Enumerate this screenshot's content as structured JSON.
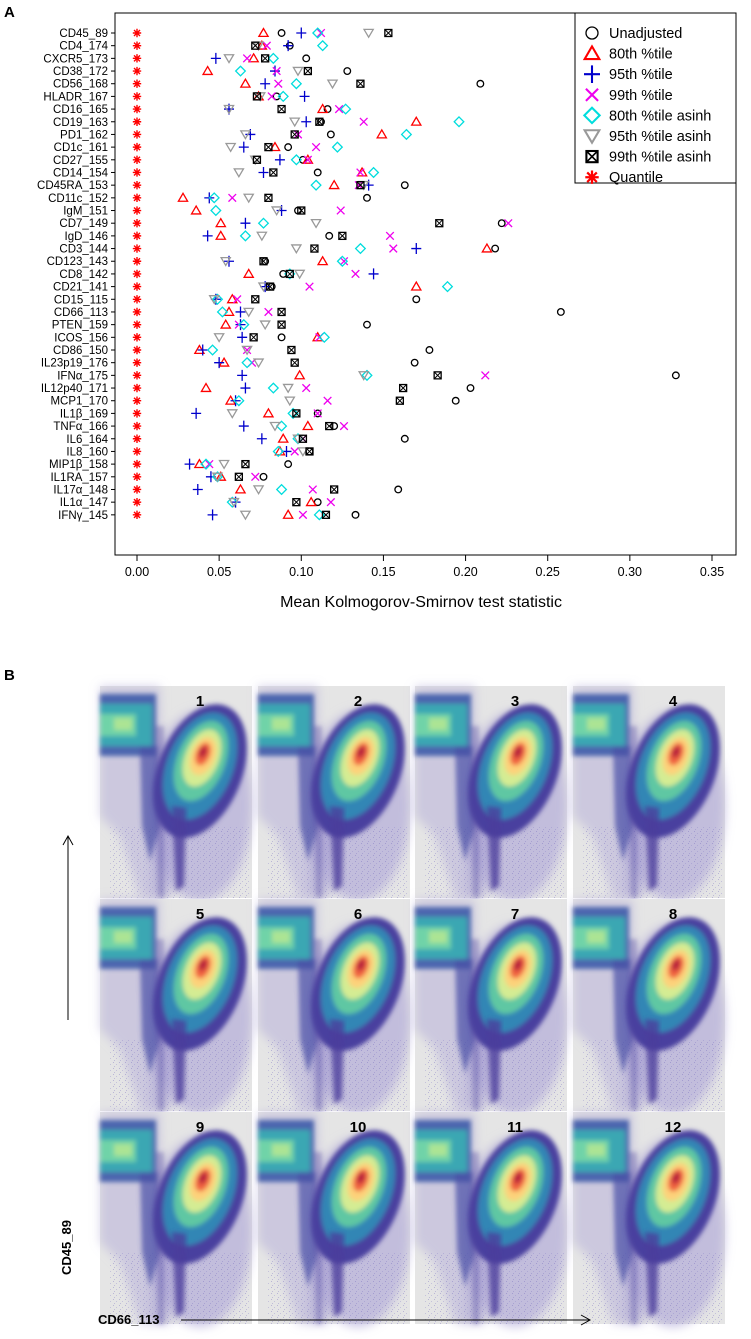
{
  "chart_data": [
    {
      "type": "scatter",
      "panel": "A",
      "xlabel": "Mean Kolmogorov-Smirnov test statistic",
      "ylabel": "",
      "xlim": [
        0,
        0.36
      ],
      "xticks": [
        "0.00",
        "0.05",
        "0.10",
        "0.15",
        "0.20",
        "0.25",
        "0.30",
        "0.35"
      ],
      "legend_position": "top-right",
      "categories": [
        "CD45_89",
        "CD4_174",
        "CXCR5_173",
        "CD38_172",
        "CD56_168",
        "HLADR_167",
        "CD16_165",
        "CD19_163",
        "PD1_162",
        "CD1c_161",
        "CD27_155",
        "CD14_154",
        "CD45RA_153",
        "CD11c_152",
        "IgM_151",
        "CD7_149",
        "IgD_146",
        "CD3_144",
        "CD123_143",
        "CD8_142",
        "CD21_141",
        "CD15_115",
        "CD66_113",
        "PTEN_159",
        "ICOS_156",
        "CD86_150",
        "IL23p19_176",
        "IFNα_175",
        "IL12p40_171",
        "MCP1_170",
        "IL1β_169",
        "TNFα_166",
        "IL6_164",
        "IL8_160",
        "MIP1β_158",
        "IL1RA_157",
        "IL17α_148",
        "IL1α_147",
        "IFNγ_145"
      ],
      "series": [
        {
          "name": "Unadjusted",
          "marker": "circle",
          "color": "#000000",
          "values": [
            0.088,
            0.093,
            0.103,
            0.128,
            0.209,
            0.085,
            0.116,
            0.112,
            0.118,
            0.092,
            0.101,
            0.11,
            0.163,
            0.14,
            0.098,
            0.222,
            0.117,
            0.218,
            0.078,
            0.089,
            0.082,
            0.17,
            0.258,
            0.14,
            0.088,
            0.178,
            0.169,
            0.328,
            0.203,
            0.194,
            0.11,
            0.12,
            0.163,
            0.105,
            0.092,
            0.077,
            0.159,
            0.11,
            0.133
          ]
        },
        {
          "name": "80th %tile",
          "marker": "triangle",
          "color": "#ff0000",
          "values": [
            0.077,
            0.076,
            0.071,
            0.043,
            0.066,
            0.074,
            0.113,
            0.17,
            0.149,
            0.084,
            0.104,
            0.137,
            0.12,
            0.028,
            0.036,
            0.051,
            0.051,
            0.213,
            0.113,
            0.068,
            0.17,
            0.058,
            0.056,
            0.054,
            0.11,
            0.038,
            0.053,
            0.099,
            0.042,
            0.057,
            0.08,
            0.104,
            0.089,
            0.087,
            0.038,
            0.051,
            0.063,
            0.106,
            0.092
          ]
        },
        {
          "name": "95th %tile",
          "marker": "plus",
          "color": "#0000cc",
          "values": [
            0.1,
            0.092,
            0.048,
            0.084,
            0.078,
            0.102,
            0.056,
            0.103,
            0.069,
            0.065,
            0.087,
            0.077,
            0.141,
            0.044,
            0.088,
            0.066,
            0.043,
            0.17,
            0.056,
            0.144,
            0.078,
            0.048,
            0.063,
            0.063,
            0.064,
            0.04,
            0.05,
            0.064,
            0.066,
            0.06,
            0.036,
            0.065,
            0.076,
            0.091,
            0.032,
            0.045,
            0.037,
            0.06,
            0.046
          ]
        },
        {
          "name": "99th %tile",
          "marker": "x",
          "color": "#ee00ee",
          "values": [
            0.112,
            0.079,
            0.067,
            0.085,
            0.086,
            0.082,
            0.123,
            0.138,
            0.098,
            0.109,
            0.104,
            0.136,
            0.135,
            0.058,
            0.124,
            0.226,
            0.154,
            0.156,
            0.126,
            0.133,
            0.105,
            0.061,
            0.08,
            0.062,
            0.111,
            0.067,
            0.07,
            0.212,
            0.103,
            0.116,
            0.11,
            0.126,
            0.101,
            0.096,
            0.044,
            0.072,
            0.107,
            0.118,
            0.101
          ]
        },
        {
          "name": "80th %tile asinh",
          "marker": "diamond",
          "color": "#00dddd",
          "values": [
            0.11,
            0.113,
            0.083,
            0.063,
            0.097,
            0.089,
            0.127,
            0.196,
            0.164,
            0.122,
            0.097,
            0.144,
            0.109,
            0.047,
            0.048,
            0.077,
            0.066,
            0.136,
            0.125,
            0.093,
            0.189,
            0.049,
            0.052,
            0.065,
            0.114,
            0.046,
            0.067,
            0.14,
            0.083,
            0.062,
            0.095,
            0.088,
            0.098,
            0.086,
            0.042,
            0.049,
            0.088,
            0.058,
            0.111
          ]
        },
        {
          "name": "95th %tile asinh",
          "marker": "tdown",
          "color": "#999999",
          "values": [
            0.141,
            0.074,
            0.056,
            0.098,
            0.119,
            0.075,
            0.056,
            0.096,
            0.066,
            0.057,
            0.072,
            0.062,
            0.138,
            0.068,
            0.085,
            0.109,
            0.076,
            0.097,
            0.054,
            0.099,
            0.077,
            0.047,
            0.068,
            0.078,
            0.05,
            0.067,
            0.074,
            0.138,
            0.092,
            0.093,
            0.058,
            0.084,
            0.098,
            0.101,
            0.053,
            0.049,
            0.074,
            0.059,
            0.066
          ]
        },
        {
          "name": "99th %tile asinh",
          "marker": "boxx",
          "color": "#000000",
          "values": [
            0.153,
            0.072,
            0.078,
            0.104,
            0.136,
            0.073,
            0.088,
            0.111,
            0.096,
            0.08,
            0.073,
            0.083,
            0.136,
            0.08,
            0.1,
            0.184,
            0.125,
            0.108,
            0.077,
            0.093,
            0.081,
            0.072,
            0.088,
            0.088,
            0.071,
            0.094,
            0.096,
            0.183,
            0.162,
            0.16,
            0.097,
            0.117,
            0.101,
            0.105,
            0.066,
            0.062,
            0.12,
            0.097,
            0.115
          ]
        },
        {
          "name": "Quantile",
          "marker": "star",
          "color": "#ff0000",
          "values": [
            0,
            0,
            0,
            0,
            0,
            0,
            0,
            0,
            0,
            0,
            0,
            0,
            0,
            0,
            0,
            0,
            0,
            0,
            0,
            0,
            0,
            0,
            0,
            0,
            0,
            0,
            0,
            0,
            0,
            0,
            0,
            0,
            0,
            0,
            0,
            0,
            0,
            0,
            0
          ]
        }
      ]
    },
    {
      "type": "heatmap",
      "panel": "B",
      "xlabel": "CD66_113",
      "ylabel": "CD45_89",
      "panels": [
        "1",
        "2",
        "3",
        "4",
        "5",
        "6",
        "7",
        "8",
        "9",
        "10",
        "11",
        "12"
      ]
    }
  ],
  "figure": {
    "panel_a_label": "A",
    "panel_b_label": "B"
  }
}
